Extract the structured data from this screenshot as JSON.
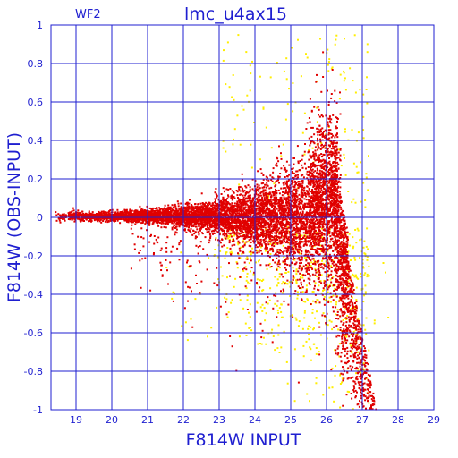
{
  "chart_data": {
    "type": "scatter",
    "title": "lmc_u4ax15",
    "panel_label": "WF2",
    "xlabel": "F814W INPUT",
    "ylabel": "F814W (OBS-INPUT)",
    "xlim": [
      18.3,
      29
    ],
    "ylim": [
      -1,
      1
    ],
    "x_ticks": [
      "19",
      "20",
      "21",
      "22",
      "23",
      "24",
      "25",
      "26",
      "27",
      "28",
      "29"
    ],
    "y_ticks": [
      "1",
      "0.8",
      "0.6",
      "0.4",
      "0.2",
      "0",
      "-0.2",
      "-0.4",
      "-0.6",
      "-0.8",
      "-1"
    ],
    "grid": true,
    "colors": {
      "axis": "#1f1fd0",
      "red_points": "#e00000",
      "yellow_points": "#ffee00"
    },
    "series": [
      {
        "color": "#e00000",
        "description_points": [
          [
            18.5,
            0.0
          ],
          [
            19.0,
            0.01
          ],
          [
            19.5,
            0.0
          ],
          [
            20.0,
            0.0
          ],
          [
            20.5,
            0.01
          ],
          [
            21.0,
            0.0
          ],
          [
            21.5,
            0.01
          ],
          [
            22.0,
            0.0
          ],
          [
            22.5,
            0.02
          ],
          [
            23.0,
            0.01
          ],
          [
            23.5,
            0.02
          ],
          [
            24.0,
            0.03
          ],
          [
            24.5,
            0.05
          ],
          [
            25.0,
            0.06
          ],
          [
            25.5,
            0.1
          ],
          [
            25.8,
            0.3
          ],
          [
            26.0,
            0.4
          ],
          [
            26.2,
            0.2
          ],
          [
            26.5,
            -0.1
          ],
          [
            26.8,
            -0.5
          ],
          [
            27.0,
            -0.8
          ],
          [
            27.2,
            -0.95
          ]
        ]
      },
      {
        "color": "#ffee00",
        "description_points": [
          [
            23.0,
            -0.3
          ],
          [
            23.5,
            -0.25
          ],
          [
            24.0,
            -0.35
          ],
          [
            24.5,
            -0.3
          ],
          [
            25.0,
            -0.5
          ],
          [
            25.5,
            -0.6
          ],
          [
            26.0,
            -0.7
          ],
          [
            26.5,
            -0.8
          ],
          [
            27.0,
            -0.5
          ],
          [
            26.3,
            0.6
          ],
          [
            26.5,
            0.9
          ]
        ]
      }
    ]
  }
}
